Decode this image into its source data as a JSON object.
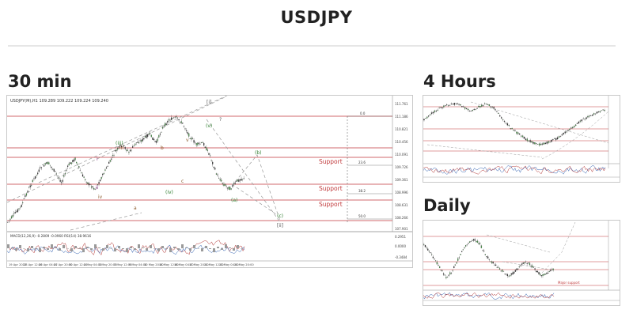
{
  "page": {
    "title": "USDJPY"
  },
  "panels": {
    "min30": {
      "title": "30 min",
      "header_text": "USDJPY(M),H1  109.289 109.222 109.224 109.240",
      "support_labels": [
        "Support",
        "Support",
        "Support"
      ],
      "fib_labels": [
        "0.0",
        "23.6",
        "38.2",
        "50.0"
      ],
      "wave_labels": [
        "(iii)",
        "(iv)",
        "(v)",
        "i",
        "ii",
        "iii",
        "iv",
        "v",
        "a",
        "b",
        "c",
        "(a)",
        "(b)",
        "(c)",
        "[ii]",
        "[i]",
        "?"
      ],
      "price_ticks": [
        "111.761",
        "111.186",
        "110.821",
        "110.456",
        "110.091",
        "109.726",
        "109.361",
        "108.996",
        "108.631",
        "108.266",
        "107.901"
      ],
      "indicator_text": "MACD(12,26,9) -0.2809 -0.0960  RSI(14) 38.9616",
      "indicator_ticks": [
        "0.2951",
        "0.0000",
        "-0.3484"
      ],
      "date_ticks": [
        "19 Apr 2018",
        "23 Apr 12:00",
        "26 Apr 04:00",
        "27 Apr 20:00",
        "30 Apr 12:00",
        "2 May 04:00",
        "3 May 20:00",
        "7 May 12:00",
        "9 May 04:00",
        "10 May 20:00",
        "14 May 12:00",
        "16 May 04:00",
        "17 May 20:00",
        "21 May 12:00",
        "23 May 04:00",
        "24 May 20:00"
      ]
    },
    "h4": {
      "title": "4 Hours"
    },
    "daily": {
      "title": "Daily",
      "label_text": "Major support"
    }
  },
  "colors": {
    "support_line": "#c0393b",
    "wave_green": "#2d7d2d",
    "wave_purple": "#8b3a8b",
    "wave_brown": "#8b5a2b",
    "candle_dark": "#2e2e2e",
    "candle_green": "#4aa04a",
    "trend_line": "#999999"
  }
}
